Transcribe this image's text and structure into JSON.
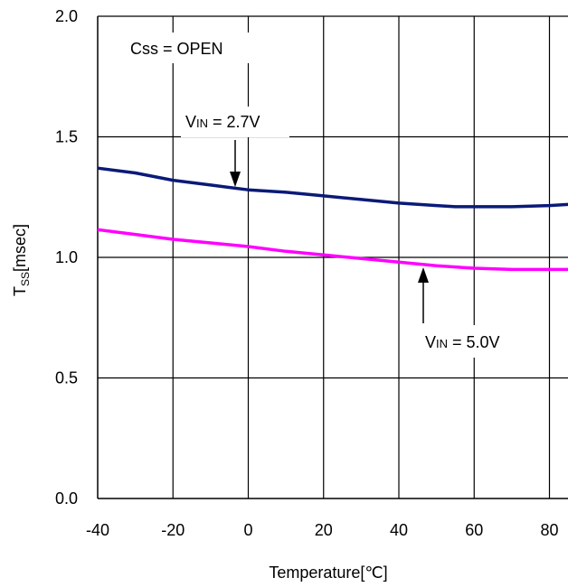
{
  "chart_data": {
    "type": "line",
    "xlabel": "Temperature[℃]",
    "ylabel_main": "T",
    "ylabel_sub": "SS",
    "ylabel_unit": "[msec]",
    "xlim": [
      -40,
      85
    ],
    "ylim": [
      0,
      2
    ],
    "x_ticks": [
      -40,
      -20,
      0,
      20,
      40,
      60,
      80
    ],
    "x_tick_labels": [
      "-40",
      "-20",
      "0",
      "20",
      "40",
      "60",
      "80"
    ],
    "y_ticks": [
      0,
      0.5,
      1,
      1.5,
      2
    ],
    "y_tick_labels": [
      "0.0",
      "0.5",
      "1.0",
      "1.5",
      "2.0"
    ],
    "grid": true,
    "series": [
      {
        "name_main": "V",
        "name_sub": "IN",
        "name_rest": " = 2.7V",
        "color": "#0a1a78",
        "x": [
          -40,
          -30,
          -20,
          -10,
          0,
          10,
          20,
          30,
          40,
          50,
          55,
          60,
          70,
          80,
          85
        ],
        "y": [
          1.37,
          1.35,
          1.32,
          1.3,
          1.28,
          1.27,
          1.255,
          1.24,
          1.225,
          1.215,
          1.21,
          1.21,
          1.21,
          1.215,
          1.22
        ]
      },
      {
        "name_main": "V",
        "name_sub": "IN",
        "name_rest": " = 5.0V",
        "color": "#ff00ff",
        "x": [
          -40,
          -30,
          -20,
          -10,
          0,
          10,
          20,
          30,
          40,
          50,
          60,
          70,
          80,
          85
        ],
        "y": [
          1.115,
          1.095,
          1.075,
          1.06,
          1.045,
          1.025,
          1.01,
          0.995,
          0.98,
          0.965,
          0.955,
          0.95,
          0.95,
          0.95
        ]
      }
    ],
    "annotations": {
      "condition": "Css = OPEN"
    }
  }
}
